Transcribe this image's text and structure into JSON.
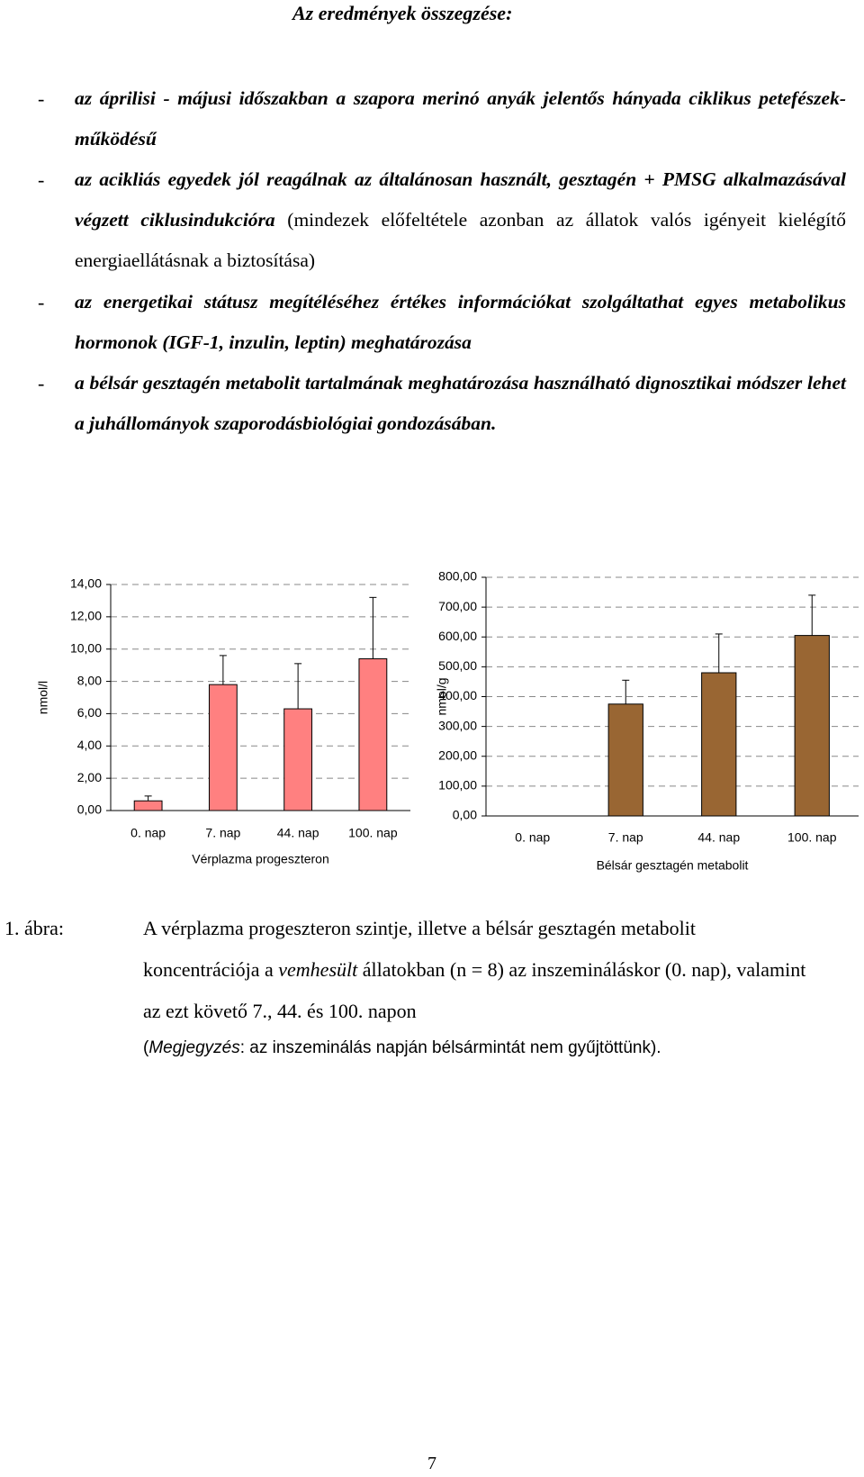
{
  "heading": "Az eredmények összegzése:",
  "bullets": [
    {
      "marker": "-",
      "parts": [
        "az áprilisi - májusi időszakban a szapora merinó anyák jelentős hányada ciklikus petefészek-működésű"
      ]
    },
    {
      "marker": "-",
      "parts": [
        "az acikliás egyedek jól reagálnak az általánosan használt, gesztagén + PMSG alkalmazásával végzett ciklusindukcióra",
        " (mindezek előfeltétele azonban az állatok valós igényeit kielégítő energiaellátásnak a biztosítása)"
      ]
    },
    {
      "marker": "-",
      "parts": [
        "az energetikai státusz megítéléséhez értékes információkat szolgáltathat egyes metabolikus hormonok (IGF-1, inzulin, leptin) meghatározása"
      ]
    },
    {
      "marker": "-",
      "parts": [
        "a bélsár gesztagén metabolit tartalmának meghatározása használható dignosztikai módszer lehet a juhállományok szaporodásbiológiai gondozásában."
      ]
    }
  ],
  "chart_data": [
    {
      "type": "bar",
      "ylabel": "nmol/l",
      "xlabel": "Vérplazma progeszteron",
      "categories": [
        "0. nap",
        "7. nap",
        "44. nap",
        "100. nap"
      ],
      "values": [
        0.6,
        7.8,
        6.3,
        9.4
      ],
      "errors": [
        0.3,
        1.8,
        2.8,
        3.8
      ],
      "color": "#ff8080",
      "ylim": [
        0,
        14
      ],
      "grid": true,
      "yticks": [
        {
          "value": 0,
          "label": "0,00"
        },
        {
          "value": 2,
          "label": "2,00"
        },
        {
          "value": 4,
          "label": "4,00"
        },
        {
          "value": 6,
          "label": "6,00"
        },
        {
          "value": 8,
          "label": "8,00"
        },
        {
          "value": 10,
          "label": "10,00"
        },
        {
          "value": 12,
          "label": "12,00"
        },
        {
          "value": 14,
          "label": "14,00"
        }
      ]
    },
    {
      "type": "bar",
      "ylabel": "nmol/g",
      "xlabel": "Bélsár gesztagén metabolit",
      "categories": [
        "0. nap",
        "7. nap",
        "44. nap",
        "100. nap"
      ],
      "values": [
        null,
        375,
        480,
        605
      ],
      "errors": [
        null,
        80,
        130,
        135
      ],
      "color": "#996633",
      "ylim": [
        0,
        800
      ],
      "grid": true,
      "yticks": [
        {
          "value": 0,
          "label": "0,00"
        },
        {
          "value": 100,
          "label": "100,00"
        },
        {
          "value": 200,
          "label": "200,00"
        },
        {
          "value": 300,
          "label": "300,00"
        },
        {
          "value": 400,
          "label": "400,00"
        },
        {
          "value": 500,
          "label": "500,00"
        },
        {
          "value": 600,
          "label": "600,00"
        },
        {
          "value": 700,
          "label": "700,00"
        },
        {
          "value": 800,
          "label": "800,00"
        }
      ]
    }
  ],
  "caption": {
    "label": "1. ábra:",
    "parts": [
      "A vérplazma progeszteron szintje, illetve a bélsár gesztagén metabolit koncentrációja a ",
      "vemhesült",
      " állatokban (n = 8) az inszemináláskor (0. nap), valamint az ezt követő 7., 44. és 100. napon"
    ],
    "note": [
      "(",
      "Megjegyzés",
      ": az inszeminálás napján bélsármintát nem gyűjtöttünk)."
    ]
  },
  "page_number": "7"
}
